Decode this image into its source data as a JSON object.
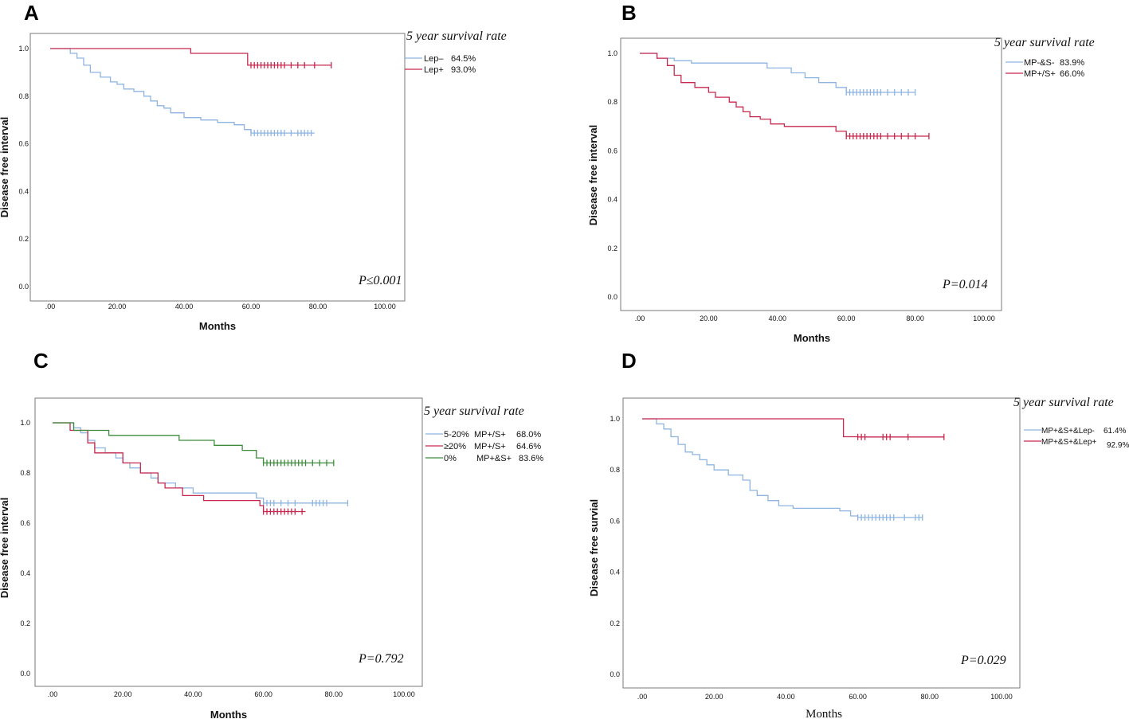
{
  "chart_data": [
    {
      "panel": "A",
      "type": "line",
      "title": "5 year survival rate",
      "xlabel": "Months",
      "ylabel": "Disease free interval",
      "xlim": [
        0,
        100
      ],
      "ylim": [
        0,
        1
      ],
      "xticks": [
        ".00",
        "20.00",
        "40.00",
        "60.00",
        "80.00",
        "100.00"
      ],
      "yticks": [
        "0.0",
        "0.2",
        "0.4",
        "0.6",
        "0.8",
        "1.0"
      ],
      "p_value": "P≤0.001",
      "series": [
        {
          "name": "Lep–",
          "rate": "64.5%",
          "color": "#8db4e2",
          "x": [
            0,
            6,
            8,
            10,
            12,
            15,
            18,
            20,
            22,
            25,
            28,
            30,
            32,
            34,
            36,
            40,
            45,
            50,
            55,
            58,
            60,
            79
          ],
          "y": [
            1.0,
            0.98,
            0.96,
            0.93,
            0.9,
            0.88,
            0.86,
            0.85,
            0.83,
            0.82,
            0.8,
            0.78,
            0.76,
            0.75,
            0.73,
            0.71,
            0.7,
            0.69,
            0.68,
            0.66,
            0.645,
            0.645
          ],
          "censored": [
            60,
            61,
            62,
            63,
            64,
            65,
            66,
            67,
            68,
            69,
            70,
            72,
            74,
            75,
            76,
            77,
            78
          ]
        },
        {
          "name": "Lep+",
          "rate": "93.0%",
          "color": "#c8284d",
          "x": [
            0,
            42,
            59,
            60,
            84
          ],
          "y": [
            1.0,
            0.98,
            0.93,
            0.93,
            0.93
          ],
          "censored": [
            60,
            61,
            62,
            63,
            64,
            65,
            66,
            67,
            68,
            69,
            70,
            72,
            74,
            76,
            79,
            84
          ]
        }
      ]
    },
    {
      "panel": "B",
      "type": "line",
      "title": "5 year survival rate",
      "xlabel": "Months",
      "ylabel": "Disease free interval",
      "xlim": [
        0,
        100
      ],
      "ylim": [
        0,
        1
      ],
      "xticks": [
        ".00",
        "20.00",
        "40.00",
        "60.00",
        "80.00",
        "100.00"
      ],
      "yticks": [
        "0.0",
        "0.2",
        "0.4",
        "0.6",
        "0.8",
        "1.0"
      ],
      "p_value": "P=0.014",
      "series": [
        {
          "name": "MP-&S-",
          "rate": "83.9%",
          "color": "#8db4e2",
          "x": [
            0,
            5,
            10,
            15,
            37,
            44,
            48,
            52,
            57,
            60,
            80
          ],
          "y": [
            1.0,
            0.98,
            0.97,
            0.96,
            0.94,
            0.92,
            0.9,
            0.88,
            0.86,
            0.84,
            0.84
          ],
          "censored": [
            60,
            61,
            62,
            63,
            64,
            65,
            66,
            67,
            68,
            69,
            70,
            72,
            74,
            76,
            78,
            80
          ]
        },
        {
          "name": "MP+/S+",
          "rate": "66.0%",
          "color": "#c8284d",
          "x": [
            0,
            5,
            8,
            10,
            12,
            16,
            20,
            22,
            26,
            28,
            30,
            32,
            35,
            38,
            42,
            57,
            60,
            84
          ],
          "y": [
            1.0,
            0.98,
            0.95,
            0.91,
            0.88,
            0.86,
            0.84,
            0.82,
            0.8,
            0.78,
            0.76,
            0.74,
            0.73,
            0.71,
            0.7,
            0.68,
            0.66,
            0.66
          ],
          "censored": [
            60,
            61,
            62,
            63,
            64,
            65,
            66,
            67,
            68,
            69,
            70,
            72,
            74,
            76,
            78,
            80,
            84
          ]
        }
      ]
    },
    {
      "panel": "C",
      "type": "line",
      "title": "5  year survival rate",
      "xlabel": "Months",
      "ylabel": "Disease free interval",
      "xlim": [
        0,
        100
      ],
      "ylim": [
        0,
        1
      ],
      "xticks": [
        ".00",
        "20.00",
        "40.00",
        "60.00",
        "80.00",
        "100.00"
      ],
      "yticks": [
        "0.0",
        "0.2",
        "0.4",
        "0.6",
        "0.8",
        "1.0"
      ],
      "p_value": "P=0.792",
      "series": [
        {
          "name": "5-20%",
          "group": "MP+/S+",
          "rate": "68.0%",
          "color": "#8db4e2",
          "x": [
            0,
            6,
            8,
            10,
            12,
            15,
            18,
            20,
            22,
            25,
            28,
            30,
            35,
            40,
            45,
            50,
            55,
            58,
            60,
            84
          ],
          "y": [
            1.0,
            0.98,
            0.96,
            0.93,
            0.9,
            0.88,
            0.86,
            0.84,
            0.82,
            0.8,
            0.78,
            0.76,
            0.74,
            0.72,
            0.72,
            0.72,
            0.72,
            0.7,
            0.68,
            0.68
          ],
          "censored": [
            60,
            61,
            62,
            63,
            65,
            67,
            69,
            74,
            75,
            76,
            77,
            78,
            84
          ]
        },
        {
          "name": "≥20%",
          "group": "MP+/S+",
          "rate": "64.6%",
          "color": "#c8284d",
          "x": [
            0,
            5,
            10,
            12,
            20,
            25,
            30,
            32,
            37,
            43,
            59,
            60,
            72
          ],
          "y": [
            1.0,
            0.97,
            0.92,
            0.88,
            0.84,
            0.8,
            0.76,
            0.74,
            0.71,
            0.69,
            0.67,
            0.646,
            0.646
          ],
          "censored": [
            60,
            61,
            62,
            63,
            64,
            65,
            66,
            67,
            68,
            69,
            71
          ]
        },
        {
          "name": "0%",
          "group": "MP+&S+",
          "rate": "83.6%",
          "color": "#3c8c3c",
          "x": [
            0,
            6,
            16,
            36,
            46,
            54,
            58,
            60,
            80
          ],
          "y": [
            1.0,
            0.97,
            0.95,
            0.93,
            0.91,
            0.89,
            0.86,
            0.84,
            0.84
          ],
          "censored": [
            60,
            61,
            62,
            63,
            64,
            65,
            66,
            67,
            68,
            69,
            70,
            71,
            72,
            74,
            76,
            78,
            80
          ]
        }
      ]
    },
    {
      "panel": "D",
      "type": "line",
      "title": "5 year survival rate",
      "xlabel": "Months",
      "ylabel": "Disease free survial",
      "xlim": [
        0,
        100
      ],
      "ylim": [
        0,
        1
      ],
      "xticks": [
        ".00",
        "20.00",
        "40.00",
        "60.00",
        "80.00",
        "100.00"
      ],
      "yticks": [
        "0.0",
        "0.2",
        "0.4",
        "0.6",
        "0.8",
        "1.0"
      ],
      "p_value": "P=0.029",
      "series": [
        {
          "name": "MP+&S+&Lep-",
          "rate": "61.4%",
          "color": "#8db4e2",
          "x": [
            0,
            4,
            6,
            8,
            10,
            12,
            14,
            16,
            18,
            20,
            24,
            28,
            30,
            32,
            35,
            38,
            42,
            48,
            55,
            58,
            60,
            78
          ],
          "y": [
            1.0,
            0.98,
            0.96,
            0.93,
            0.9,
            0.87,
            0.86,
            0.84,
            0.82,
            0.8,
            0.78,
            0.76,
            0.72,
            0.7,
            0.68,
            0.66,
            0.65,
            0.65,
            0.64,
            0.62,
            0.614,
            0.614
          ],
          "censored": [
            60,
            61,
            62,
            63,
            64,
            65,
            66,
            67,
            68,
            69,
            70,
            73,
            76,
            77,
            78
          ]
        },
        {
          "name": "MP+&S+&Lep+",
          "rate": "92.9%",
          "color": "#c8284d",
          "x": [
            0,
            56,
            60,
            84
          ],
          "y": [
            1.0,
            0.93,
            0.929,
            0.929
          ],
          "censored": [
            60,
            61,
            62,
            67,
            68,
            69,
            74,
            84
          ]
        }
      ]
    }
  ]
}
